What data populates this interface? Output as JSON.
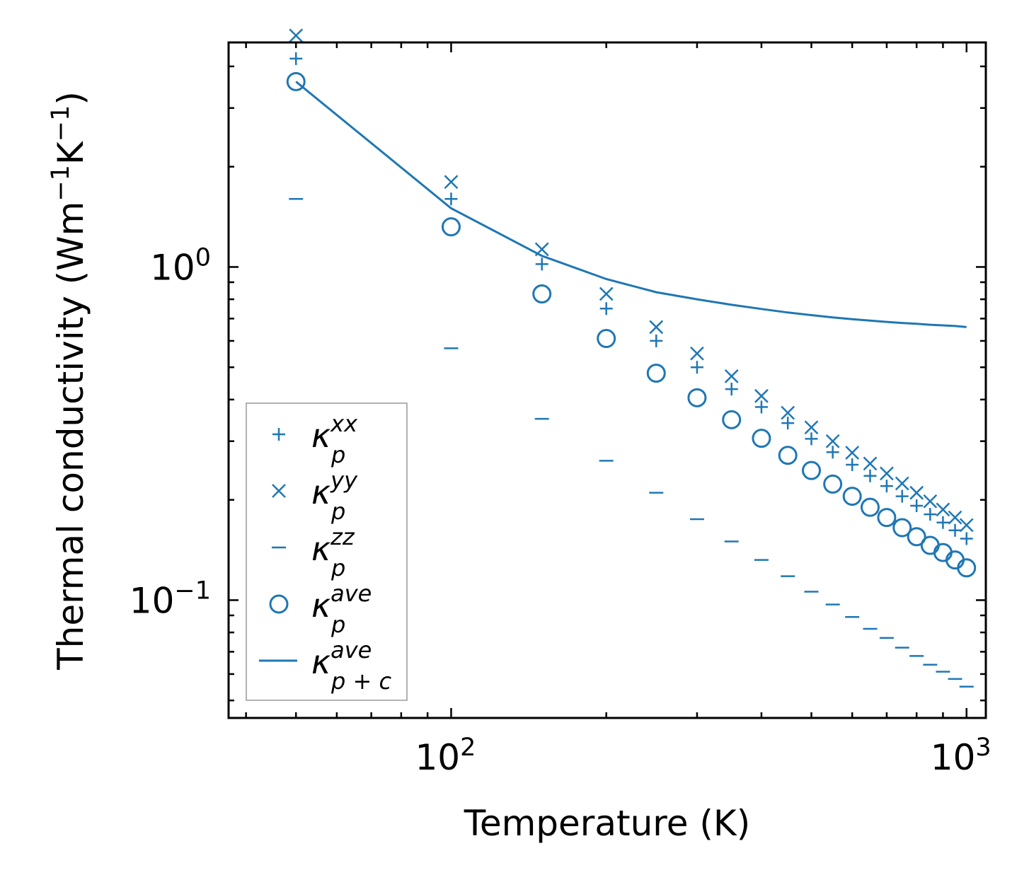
{
  "chart_data": {
    "type": "scatter",
    "xscale": "log",
    "yscale": "log",
    "xlim": [
      37,
      1090
    ],
    "ylim": [
      0.0443,
      4.72
    ],
    "xlabel": "Temperature (K)",
    "ylabel": {
      "base": "Thermal conductivity (Wm",
      "exp1": "−1",
      "mid": "K",
      "exp2": "−1",
      "end": ")"
    },
    "xticks": [
      {
        "value": 100,
        "base": "10",
        "exp": "2"
      },
      {
        "value": 1000,
        "base": "10",
        "exp": "3"
      }
    ],
    "yticks": [
      {
        "value": 1,
        "base": "10",
        "exp": "0"
      },
      {
        "value": 0.1,
        "base": "10",
        "exp": "−1"
      }
    ],
    "color": "#1f77b4",
    "x": [
      50,
      100,
      150,
      200,
      250,
      300,
      350,
      400,
      450,
      500,
      550,
      600,
      650,
      700,
      750,
      800,
      850,
      900,
      950,
      1000
    ],
    "series": [
      {
        "key": "kxx",
        "name": "κ",
        "sub": "p",
        "sup": "xx",
        "marker": "plus",
        "values": [
          4.22,
          1.6,
          1.02,
          0.75,
          0.6,
          0.5,
          0.43,
          0.38,
          0.34,
          0.305,
          0.278,
          0.255,
          0.236,
          0.22,
          0.205,
          0.192,
          0.181,
          0.171,
          0.162,
          0.153
        ]
      },
      {
        "key": "kyy",
        "name": "κ",
        "sub": "p",
        "sup": "yy",
        "marker": "x",
        "values": [
          4.95,
          1.8,
          1.13,
          0.83,
          0.66,
          0.55,
          0.47,
          0.41,
          0.365,
          0.33,
          0.3,
          0.277,
          0.257,
          0.24,
          0.224,
          0.21,
          0.198,
          0.187,
          0.177,
          0.168
        ]
      },
      {
        "key": "kzz",
        "name": "κ",
        "sub": "p",
        "sup": "zz",
        "marker": "hline",
        "values": [
          1.6,
          0.57,
          0.35,
          0.262,
          0.21,
          0.175,
          0.15,
          0.132,
          0.118,
          0.106,
          0.097,
          0.089,
          0.082,
          0.077,
          0.072,
          0.068,
          0.064,
          0.061,
          0.058,
          0.055
        ]
      },
      {
        "key": "kave",
        "name": "κ",
        "sub": "p",
        "sup": "ave",
        "marker": "circle",
        "values": [
          3.6,
          1.32,
          0.83,
          0.61,
          0.48,
          0.405,
          0.348,
          0.306,
          0.272,
          0.245,
          0.223,
          0.205,
          0.19,
          0.177,
          0.165,
          0.155,
          0.146,
          0.139,
          0.132,
          0.125
        ]
      },
      {
        "key": "kpc",
        "name": "κ",
        "sub": "p + c",
        "sup": "ave",
        "marker": "line",
        "values": [
          3.6,
          1.5,
          1.08,
          0.92,
          0.84,
          0.8,
          0.77,
          0.748,
          0.73,
          0.717,
          0.706,
          0.697,
          0.69,
          0.684,
          0.679,
          0.675,
          0.671,
          0.668,
          0.665,
          0.66
        ]
      }
    ],
    "legend_position": "lower-left"
  }
}
